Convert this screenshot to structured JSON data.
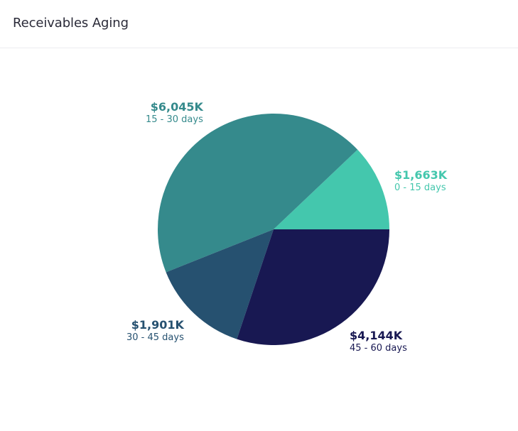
{
  "header": {
    "title": "Receivables Aging"
  },
  "chart_data": {
    "type": "pie",
    "categories": [
      "0 - 15 days",
      "15 - 30 days",
      "30 - 45 days",
      "45 - 60 days"
    ],
    "values": [
      1663,
      6045,
      1901,
      4144
    ],
    "value_labels": [
      "$1,663K",
      "$6,045K",
      "$1,901K",
      "$4,144K"
    ],
    "colors": [
      "#44c7ad",
      "#358a8c",
      "#265170",
      "#181852"
    ],
    "start_direction": "3 o'clock",
    "slice_order": "counter-clockwise"
  }
}
